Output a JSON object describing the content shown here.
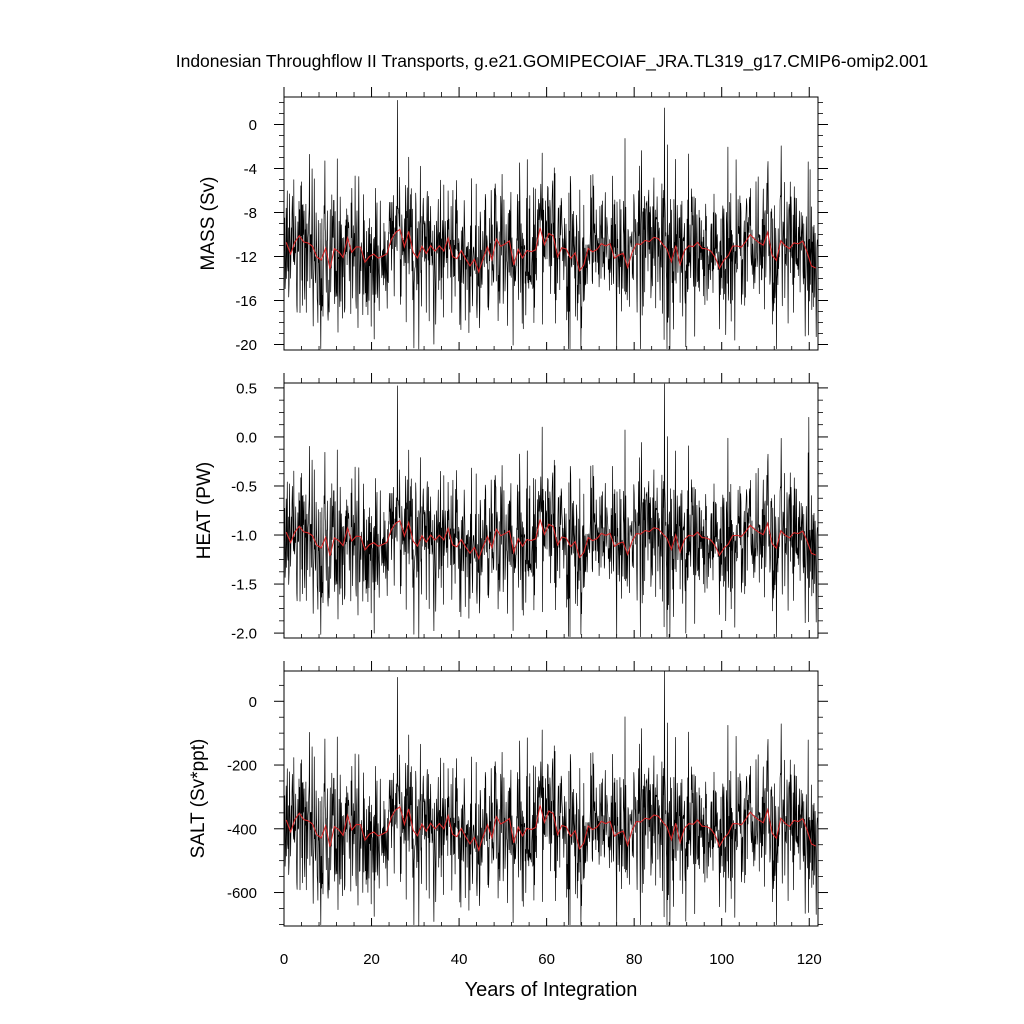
{
  "figure": {
    "title": "Indonesian Throughflow II Transports, g.e21.GOMIPECOIAF_JRA.TL319_g17.CMIP6-omip2.001",
    "xlabel": "Years of Integration",
    "colors": {
      "monthly": "#000000",
      "annual": "#d62728",
      "axes": "#000000",
      "background": "#ffffff"
    }
  },
  "chart_data": [
    {
      "type": "line",
      "ylabel": "MASS (Sv)",
      "xlim": [
        0,
        122
      ],
      "ylim": [
        -20.5,
        2.5
      ],
      "xticks": [
        0,
        20,
        40,
        60,
        80,
        100,
        120
      ],
      "yticks": [
        0,
        -4,
        -8,
        -12,
        -16,
        -20
      ],
      "ytick_labels": [
        "0",
        "-4",
        "-8",
        "-12",
        "-16",
        "-20"
      ],
      "grid": false,
      "series": [
        {
          "role": "monthly",
          "mean": -11.5,
          "noise_sd": 3.2,
          "annual_amp": 1.0,
          "fine_noise_sd": 0.45,
          "spikes": [
            [
              25.9,
              2.2
            ],
            [
              86.9,
              1.5
            ],
            [
              30.8,
              -20.4
            ],
            [
              20.6,
              -19.5
            ],
            [
              91.8,
              -20.2
            ],
            [
              59.0,
              -2.6
            ],
            [
              103.3,
              -3.2
            ],
            [
              120.2,
              -4.1
            ]
          ]
        },
        {
          "role": "annual",
          "mean": -11.5,
          "annual_amp": 1.0,
          "fine_noise_sd": 0.45,
          "range": [
            -13.5,
            -8.0
          ]
        }
      ]
    },
    {
      "type": "line",
      "ylabel": "HEAT (PW)",
      "xlim": [
        0,
        122
      ],
      "ylim": [
        -2.05,
        0.55
      ],
      "xticks": [
        0,
        20,
        40,
        60,
        80,
        100,
        120
      ],
      "yticks": [
        0.5,
        0.0,
        -0.5,
        -1.0,
        -1.5,
        -2.0
      ],
      "ytick_labels": [
        "0.5",
        "0.0",
        "-0.5",
        "-1.0",
        "-1.5",
        "-2.0"
      ],
      "grid": false,
      "series": [
        {
          "role": "monthly",
          "mean": -1.05,
          "noise_sd": 0.35,
          "annual_amp": 0.1,
          "fine_noise_sd": 0.05,
          "spikes": [
            [
              25.9,
              0.52
            ],
            [
              86.9,
              0.54
            ],
            [
              30.8,
              -2.05
            ],
            [
              20.6,
              -2.0
            ],
            [
              91.8,
              -2.0
            ],
            [
              59.0,
              0.1
            ],
            [
              119.9,
              0.2
            ]
          ]
        },
        {
          "role": "annual",
          "mean": -1.05,
          "annual_amp": 0.1,
          "fine_noise_sd": 0.05,
          "range": [
            -1.25,
            -0.6
          ]
        }
      ]
    },
    {
      "type": "line",
      "ylabel": "SALT (Sv*ppt)",
      "xlim": [
        0,
        122
      ],
      "ylim": [
        -705,
        95
      ],
      "xticks": [
        0,
        20,
        40,
        60,
        80,
        100,
        120
      ],
      "xtick_labels": [
        "0",
        "20",
        "40",
        "60",
        "80",
        "100",
        "120"
      ],
      "yticks": [
        0,
        -200,
        -400,
        -600
      ],
      "ytick_labels": [
        "0",
        "-200",
        "-400",
        "-600"
      ],
      "grid": false,
      "series": [
        {
          "role": "monthly",
          "mean": -400,
          "noise_sd": 110,
          "annual_amp": 35,
          "fine_noise_sd": 15,
          "spikes": [
            [
              25.9,
              75
            ],
            [
              86.9,
              95
            ],
            [
              30.8,
              -705
            ],
            [
              20.6,
              -675
            ],
            [
              91.8,
              -690
            ],
            [
              59.0,
              -90
            ],
            [
              103.3,
              -110
            ]
          ]
        },
        {
          "role": "annual",
          "mean": -400,
          "annual_amp": 35,
          "fine_noise_sd": 15,
          "range": [
            -470,
            -260
          ]
        }
      ]
    }
  ]
}
